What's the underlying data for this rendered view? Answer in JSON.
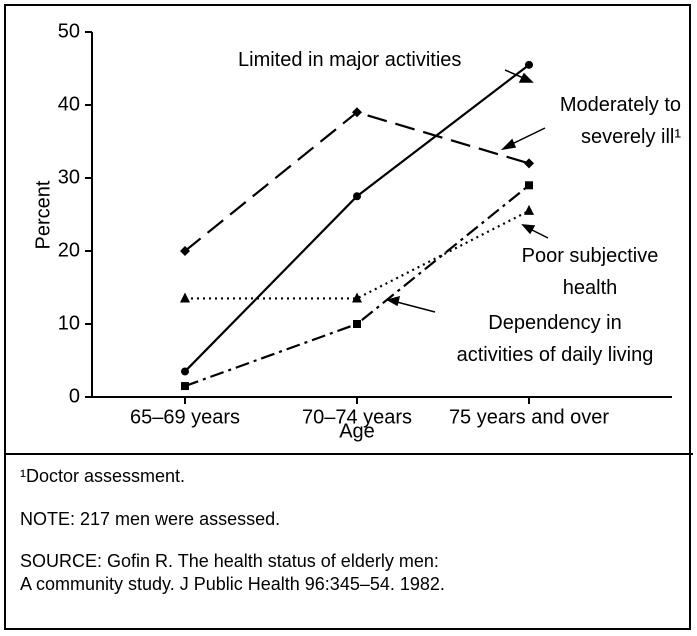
{
  "chart_data": {
    "type": "line",
    "x_label": "Age",
    "y_label": "Percent",
    "categories": [
      "65–69 years",
      "70–74 years",
      "75 years and over"
    ],
    "ylim": [
      0,
      50
    ],
    "yticks": [
      0,
      10,
      20,
      30,
      40,
      50
    ],
    "series": [
      {
        "name": "Limited in major activities",
        "color": "#000",
        "dash": "solid",
        "marker": "circle",
        "values": [
          3.5,
          27.5,
          45.5
        ]
      },
      {
        "name": "Moderately to\nsevere­ly ill¹",
        "color": "#000",
        "dash": "dashed",
        "marker": "diamond",
        "values": [
          20,
          39,
          32
        ]
      },
      {
        "name": "Poor subjective\nhealth",
        "color": "#000",
        "dash": "dotted",
        "marker": "triangle",
        "values": [
          13.5,
          13.5,
          25.5
        ]
      },
      {
        "name": "Dependency in\nactivities of daily living",
        "color": "#000",
        "dash": "dashdot",
        "marker": "square",
        "values": [
          1.5,
          10,
          29
        ]
      }
    ],
    "footnote": "¹Doctor assessment.",
    "note": "NOTE: 217 men were assessed.",
    "source": [
      "SOURCE: Gofin R. The health status of elderly men:",
      "A community study. J Public Health 96:345–54. 1982."
    ]
  }
}
